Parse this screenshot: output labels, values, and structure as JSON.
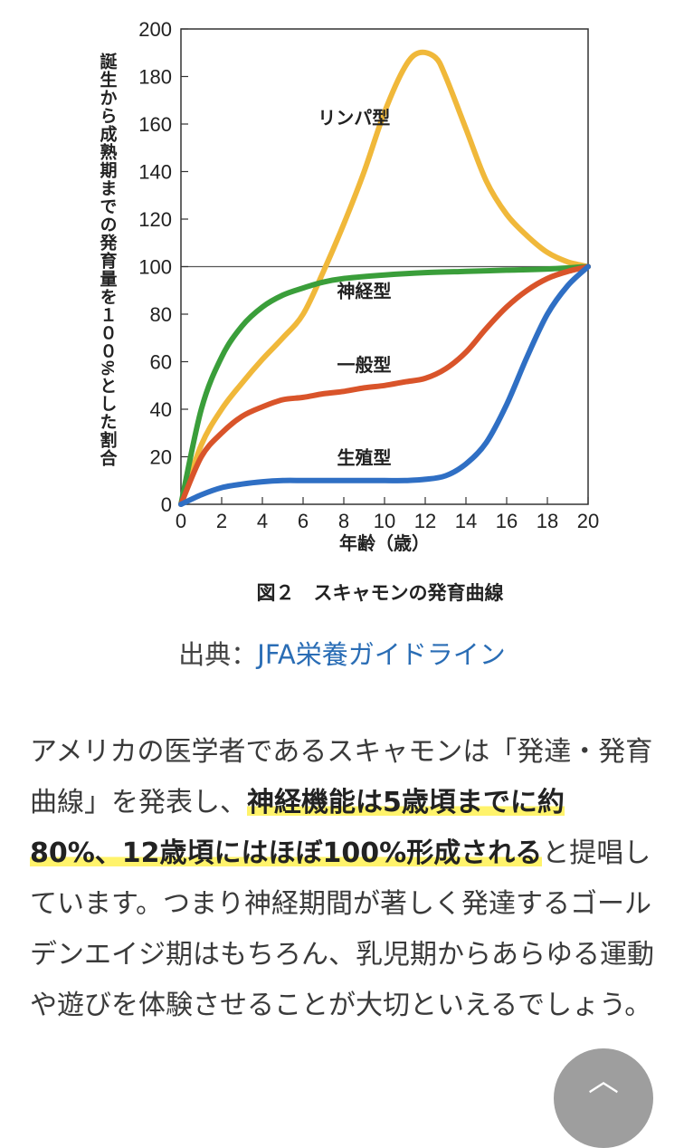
{
  "chart_data": {
    "type": "line",
    "title": "図２　スキャモンの発育曲線",
    "xlabel": "年齢（歳）",
    "ylabel": "誕生から成熟期までの発育量を１００%とした割合",
    "xlim": [
      0,
      20
    ],
    "ylim": [
      0,
      200
    ],
    "x_ticks": [
      "0",
      "2",
      "4",
      "6",
      "8",
      "10",
      "12",
      "14",
      "16",
      "18",
      "20"
    ],
    "y_ticks": [
      "0",
      "20",
      "40",
      "60",
      "80",
      "100",
      "120",
      "140",
      "160",
      "180",
      "200"
    ],
    "reference_line": 100,
    "grid": false,
    "series": [
      {
        "name": "リンパ型",
        "color": "#f0b83a",
        "x": [
          0,
          1,
          2,
          3,
          4,
          5,
          6,
          7,
          8,
          9,
          10,
          11,
          11.7,
          12.5,
          13,
          14,
          15,
          16,
          17,
          18,
          19,
          20
        ],
        "y": [
          0,
          25,
          40,
          51,
          61,
          70,
          80,
          98,
          118,
          140,
          165,
          184,
          190,
          188,
          180,
          158,
          136,
          122,
          113,
          106,
          102,
          100
        ]
      },
      {
        "name": "神経型",
        "color": "#3a9e3a",
        "x": [
          0,
          1,
          2,
          3,
          4,
          5,
          6,
          7,
          8,
          10,
          12,
          14,
          16,
          18,
          20
        ],
        "y": [
          0,
          40,
          62,
          75,
          83,
          88,
          91,
          93.5,
          95,
          96.5,
          97.5,
          98,
          98.5,
          99,
          100
        ]
      },
      {
        "name": "一般型",
        "color": "#d9542a",
        "x": [
          0,
          1,
          2,
          3,
          4,
          5,
          6,
          7,
          8,
          9,
          10,
          11,
          12,
          13,
          14,
          15,
          16,
          17,
          18,
          19,
          20
        ],
        "y": [
          0,
          20,
          30,
          37,
          41,
          44,
          45,
          46.5,
          47.5,
          49,
          50,
          51.5,
          53,
          57,
          64,
          74,
          83,
          90,
          95,
          98,
          100
        ]
      },
      {
        "name": "生殖型",
        "color": "#2f6fc4",
        "x": [
          0,
          1,
          2,
          3,
          4,
          5,
          6,
          7,
          8,
          9,
          10,
          11,
          12,
          13,
          14,
          15,
          16,
          17,
          18,
          19,
          20
        ],
        "y": [
          0,
          4,
          7,
          8.5,
          9.5,
          10,
          10,
          10,
          10,
          10,
          10,
          10,
          10.5,
          12,
          17,
          26,
          42,
          62,
          80,
          92,
          100
        ]
      }
    ],
    "annotations": [
      {
        "text": "リンパ型",
        "x": 8.5,
        "y": 160
      },
      {
        "text": "神経型",
        "x": 9,
        "y": 87
      },
      {
        "text": "一般型",
        "x": 9,
        "y": 56
      },
      {
        "text": "生殖型",
        "x": 9,
        "y": 17
      }
    ]
  },
  "source": {
    "prefix": "出典：",
    "link": "JFA栄養ガイドライン"
  },
  "article": {
    "part1": "アメリカの医学者であるスキャモンは「発達・発育曲線」を発表し、",
    "highlight": "神経機能は5歳頃までに約80%、12歳頃にはほぼ100%形成される",
    "part2": "と提唱しています。つまり神経期間が著しく発達するゴールデンエイジ期はもちろん、乳児期からあらゆる運動や遊びを体験させることが大切といえるでしょう。"
  },
  "scroll_top": {
    "icon": "chevron-up-icon",
    "color": "#9e9e9e"
  }
}
